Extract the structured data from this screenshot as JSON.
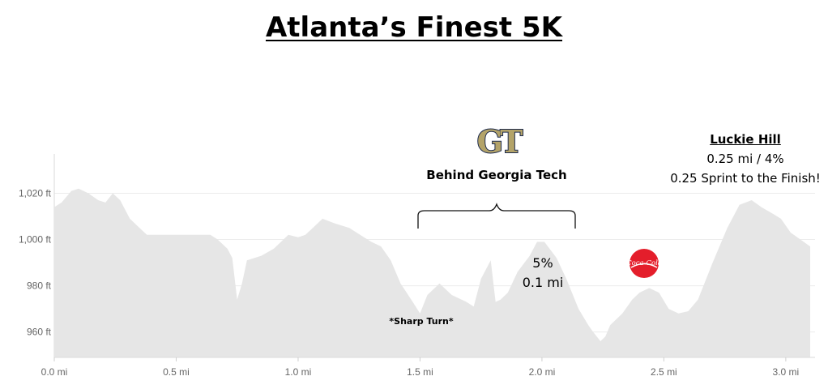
{
  "title": "Atlanta’s Finest 5K",
  "annotations": {
    "georgia_tech": "Behind Georgia Tech",
    "luckie_head": "Luckie Hill",
    "luckie_line1": "0.25 mi / 4%",
    "luckie_line2": "0.25 Sprint to the Finish!",
    "climb_grade": "5%",
    "climb_distance": "0.1 mi",
    "sharp_turn": "*Sharp Turn*"
  },
  "logos": {
    "gt_text": "GT",
    "coke_text": "Coca-Cola"
  },
  "colors": {
    "area_fill": "#e6e6e6",
    "gridline": "#ececec",
    "tick_text": "#666666",
    "gt_gold": "#b3a369",
    "gt_navy": "#1d2b4f",
    "coke_red": "#e41e2b"
  },
  "chart_data": {
    "type": "area",
    "xlabel": "",
    "ylabel": "",
    "xlim": [
      0,
      3.12
    ],
    "ylim": [
      949,
      1037
    ],
    "x_ticks": [
      0,
      0.5,
      1.0,
      1.5,
      2.0,
      2.5,
      3.0
    ],
    "x_tick_labels": [
      "0.0 mi",
      "0.5 mi",
      "1.0 mi",
      "1.5 mi",
      "2.0 mi",
      "2.5 mi",
      "3.0 mi"
    ],
    "y_ticks": [
      960,
      980,
      1000,
      1020
    ],
    "y_tick_labels": [
      "960 ft",
      "980 ft",
      "1,000 ft",
      "1,020 ft"
    ],
    "grid": true,
    "series": [
      {
        "x": [
          0.0,
          0.03,
          0.07,
          0.1,
          0.14,
          0.18,
          0.21,
          0.24,
          0.27,
          0.31,
          0.36,
          0.38,
          0.43,
          0.5,
          0.57,
          0.64,
          0.67,
          0.71,
          0.73,
          0.75,
          0.77,
          0.79,
          0.85,
          0.9,
          0.93,
          0.96,
          1.0,
          1.03,
          1.05,
          1.1,
          1.15,
          1.21,
          1.27,
          1.3,
          1.34,
          1.38,
          1.42,
          1.47,
          1.5,
          1.53,
          1.58,
          1.63,
          1.69,
          1.72,
          1.75,
          1.79,
          1.81,
          1.83,
          1.86,
          1.9,
          1.95,
          1.98,
          2.01,
          2.06,
          2.1,
          2.15,
          2.19,
          2.21,
          2.24,
          2.26,
          2.28,
          2.33,
          2.37,
          2.4,
          2.44,
          2.48,
          2.52,
          2.56,
          2.6,
          2.64,
          2.7,
          2.76,
          2.81,
          2.86,
          2.9,
          2.95,
          2.98,
          3.02,
          3.06,
          3.1
        ],
        "y": [
          1014,
          1016,
          1021,
          1022,
          1020,
          1017,
          1016,
          1020,
          1017,
          1009,
          1004,
          1002,
          1002,
          1002,
          1002,
          1002,
          1000,
          996,
          992,
          974,
          981,
          991,
          993,
          996,
          999,
          1002,
          1001,
          1002,
          1004,
          1009,
          1007,
          1005,
          1001,
          999,
          997,
          991,
          981,
          973,
          968,
          976,
          981,
          976,
          973,
          971,
          983,
          991,
          973,
          974,
          977,
          986,
          993,
          999,
          999,
          992,
          983,
          970,
          963,
          960,
          956,
          958,
          963,
          968,
          974,
          977,
          979,
          977,
          970,
          968,
          969,
          974,
          990,
          1005,
          1015,
          1017,
          1014,
          1011,
          1009,
          1003,
          1000,
          997
        ]
      }
    ]
  }
}
